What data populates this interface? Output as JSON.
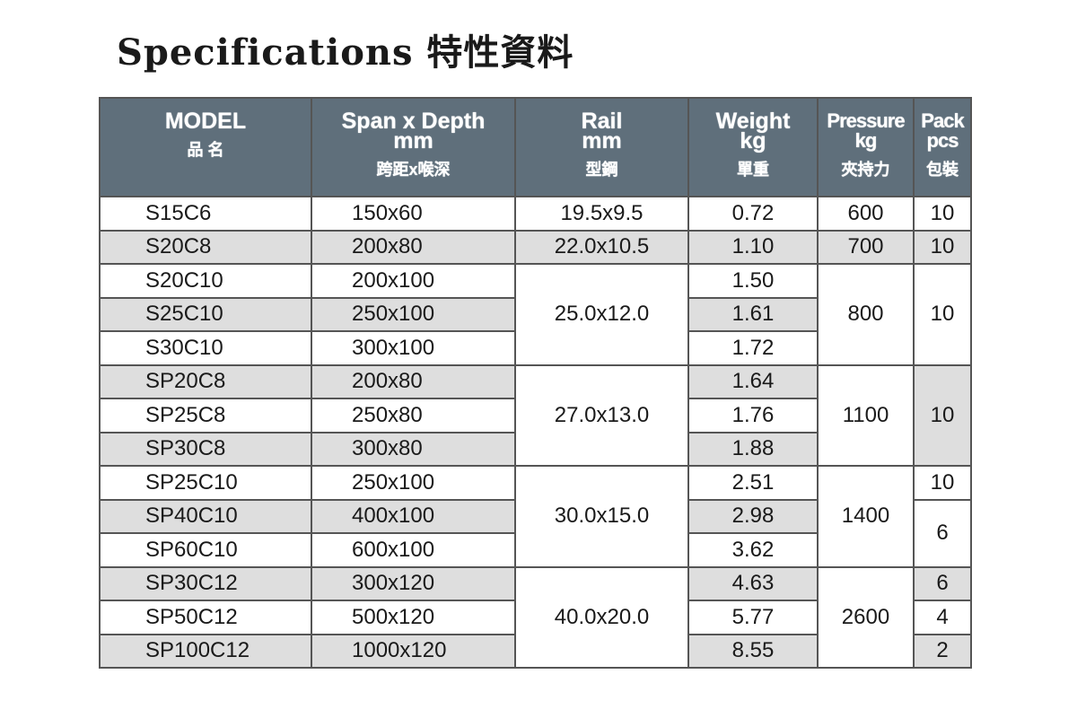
{
  "title": "Specifications 特性資料",
  "headers": [
    {
      "en": "MODEL",
      "cn": "品 名"
    },
    {
      "en": "Span x Depth\nmm",
      "cn": "跨距x喉深"
    },
    {
      "en": "Rail\nmm",
      "cn": "型鋼"
    },
    {
      "en": "Weight\nkg",
      "cn": "單重"
    },
    {
      "en": "Pressure\nkg",
      "cn": "夾持力"
    },
    {
      "en": "Pack\npcs",
      "cn": "包裝"
    }
  ],
  "rows": [
    {
      "model": "S15C6",
      "span": "150x60",
      "weight": "0.72"
    },
    {
      "model": "S20C8",
      "span": "200x80",
      "weight": "1.10"
    },
    {
      "model": "S20C10",
      "span": "200x100",
      "weight": "1.50"
    },
    {
      "model": "S25C10",
      "span": "250x100",
      "weight": "1.61"
    },
    {
      "model": "S30C10",
      "span": "300x100",
      "weight": "1.72"
    },
    {
      "model": "SP20C8",
      "span": "200x80",
      "weight": "1.64"
    },
    {
      "model": "SP25C8",
      "span": "250x80",
      "weight": "1.76"
    },
    {
      "model": "SP30C8",
      "span": "300x80",
      "weight": "1.88"
    },
    {
      "model": "SP25C10",
      "span": "250x100",
      "weight": "2.51"
    },
    {
      "model": "SP40C10",
      "span": "400x100",
      "weight": "2.98"
    },
    {
      "model": "SP60C10",
      "span": "600x100",
      "weight": "3.62"
    },
    {
      "model": "SP30C12",
      "span": "300x120",
      "weight": "4.63"
    },
    {
      "model": "SP50C12",
      "span": "500x120",
      "weight": "5.77"
    },
    {
      "model": "SP100C12",
      "span": "1000x120",
      "weight": "8.55"
    }
  ],
  "rail": [
    "19.5x9.5",
    "22.0x10.5",
    "25.0x12.0",
    "27.0x13.0",
    "30.0x15.0",
    "40.0x20.0"
  ],
  "pressure": [
    "600",
    "700",
    "800",
    "1100",
    "1400",
    "2600"
  ],
  "pack": [
    "10",
    "10",
    "10",
    "10",
    "10",
    "6",
    "6",
    "4",
    "2"
  ],
  "colors": {
    "header_bg": "#5f6f7b",
    "shaded_row": "#dedede"
  }
}
